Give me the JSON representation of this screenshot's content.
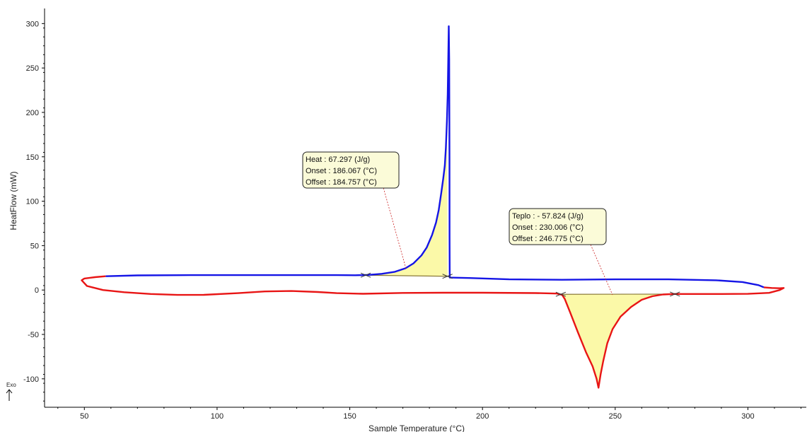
{
  "chart_data": {
    "type": "line",
    "xlabel": "Sample Temperature (°C)",
    "ylabel": "HeatFlow (mW)",
    "xlim": [
      35,
      322
    ],
    "ylim": [
      -132,
      317
    ],
    "xticks": [
      50,
      100,
      150,
      200,
      250,
      300
    ],
    "yticks": [
      -100,
      -50,
      0,
      50,
      100,
      150,
      200,
      250,
      300
    ],
    "exo_label": "Exo",
    "colors": {
      "heating": "#1515e6",
      "cooling": "#e81515",
      "fill": "#fbf9a8",
      "baseline": "#8a7a3a",
      "axis": "#000000"
    },
    "series": [
      {
        "key": "heating",
        "points": [
          [
            58,
            15.5
          ],
          [
            70,
            16.5
          ],
          [
            90,
            16.8
          ],
          [
            110,
            16.8
          ],
          [
            130,
            16.8
          ],
          [
            145,
            16.8
          ],
          [
            152,
            16.6
          ],
          [
            157,
            17.0
          ],
          [
            162,
            18.2
          ],
          [
            167,
            20.5
          ],
          [
            171,
            24.5
          ],
          [
            174,
            30
          ],
          [
            177,
            39
          ],
          [
            179,
            48
          ],
          [
            181,
            62
          ],
          [
            182.5,
            76
          ],
          [
            183.5,
            90
          ],
          [
            184.5,
            110
          ],
          [
            185.2,
            125
          ],
          [
            185.8,
            140
          ],
          [
            186.2,
            160
          ],
          [
            186.6,
            190
          ],
          [
            186.9,
            220
          ],
          [
            187.1,
            260
          ],
          [
            187.3,
            297
          ],
          [
            187.45,
            260
          ],
          [
            187.55,
            150
          ],
          [
            187.6,
            60
          ],
          [
            187.65,
            20
          ],
          [
            187.7,
            14
          ],
          [
            195,
            13.5
          ],
          [
            210,
            12
          ],
          [
            230,
            11.5
          ],
          [
            250,
            12
          ],
          [
            270,
            12
          ],
          [
            288,
            11
          ],
          [
            298,
            9
          ],
          [
            304,
            5.5
          ],
          [
            306,
            3
          ]
        ]
      },
      {
        "key": "cooling",
        "points": [
          [
            306,
            3
          ],
          [
            309,
            2.3
          ],
          [
            312,
            2.0
          ],
          [
            313.5,
            2.3
          ],
          [
            312,
            0
          ],
          [
            308,
            -3.2
          ],
          [
            300,
            -4.3
          ],
          [
            290,
            -4.5
          ],
          [
            280,
            -4.5
          ],
          [
            272,
            -4.5
          ],
          [
            268,
            -5
          ],
          [
            264,
            -7
          ],
          [
            260,
            -11
          ],
          [
            256,
            -19
          ],
          [
            252,
            -30
          ],
          [
            249,
            -44
          ],
          [
            247,
            -60
          ],
          [
            245.5,
            -80
          ],
          [
            244.5,
            -95
          ],
          [
            243.7,
            -110
          ],
          [
            243,
            -100
          ],
          [
            241.5,
            -86
          ],
          [
            239,
            -70
          ],
          [
            236,
            -48
          ],
          [
            233,
            -25
          ],
          [
            231,
            -10
          ],
          [
            230,
            -5.5
          ],
          [
            228,
            -4
          ],
          [
            220,
            -3.4
          ],
          [
            200,
            -3
          ],
          [
            185,
            -3
          ],
          [
            170,
            -3.3
          ],
          [
            155,
            -4.2
          ],
          [
            145,
            -3.5
          ],
          [
            138,
            -2.2
          ],
          [
            128,
            -1.1
          ],
          [
            118,
            -1.6
          ],
          [
            108,
            -3.5
          ],
          [
            95,
            -5.4
          ],
          [
            85,
            -5.5
          ],
          [
            75,
            -4.5
          ],
          [
            65,
            -2.5
          ],
          [
            57,
            0
          ],
          [
            51,
            4.5
          ],
          [
            49,
            11
          ],
          [
            50,
            13
          ],
          [
            54,
            14.5
          ],
          [
            58,
            15.5
          ]
        ]
      }
    ],
    "peaks": [
      {
        "series": "heating",
        "heat_label": "Heat",
        "heat_value": "67.297 (J/g)",
        "onset_label": "Onset",
        "onset_value": "186.067 (°C)",
        "offset_label": "Offset",
        "offset_value": "184.757 (°C)",
        "baseline_start": [
          156,
          16.7
        ],
        "baseline_end": [
          186.8,
          15.5
        ]
      },
      {
        "series": "cooling",
        "heat_label": "Teplo",
        "heat_value": "- 57.824 (J/g)",
        "onset_label": "Onset",
        "onset_value": "230.006 (°C)",
        "offset_label": "Offset",
        "offset_value": "246.775 (°C)",
        "baseline_start": [
          229.5,
          -4.8
        ],
        "baseline_end": [
          272.5,
          -4.6
        ]
      }
    ]
  }
}
